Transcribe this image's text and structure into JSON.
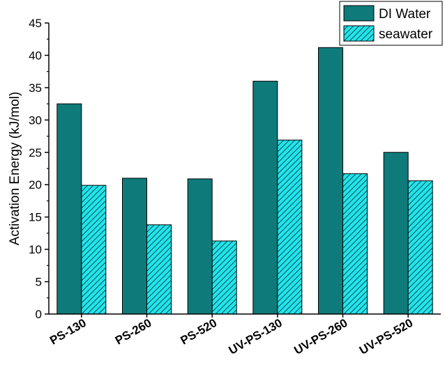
{
  "chart_data": {
    "type": "bar",
    "title": "",
    "xlabel": "",
    "ylabel": "Activation Energy (kJ/mol)",
    "ylim": [
      0,
      45
    ],
    "yticks": [
      0,
      5,
      10,
      15,
      20,
      25,
      30,
      35,
      40,
      45
    ],
    "grid": false,
    "legend_position": "top-right",
    "categories": [
      "PS-130",
      "PS-260",
      "PS-520",
      "UV-PS-130",
      "UV-PS-260",
      "UV-PS-520"
    ],
    "series": [
      {
        "name": "DI Water",
        "color": "#0f7a7a",
        "pattern": "solid",
        "values": [
          32.5,
          21.0,
          20.9,
          36.0,
          41.2,
          25.0
        ]
      },
      {
        "name": "seawater",
        "color": "#1ee6ee",
        "pattern": "diagonal-hatch",
        "values": [
          19.9,
          13.8,
          11.3,
          26.9,
          21.7,
          20.6
        ]
      }
    ]
  }
}
